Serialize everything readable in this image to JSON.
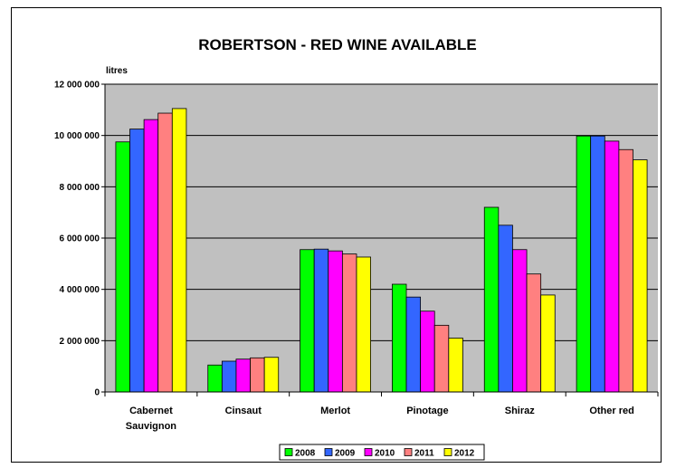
{
  "chart_data": {
    "type": "bar",
    "title": "ROBERTSON - RED WINE AVAILABLE",
    "ylabel": "litres",
    "xlabel": "",
    "ylim": [
      0,
      12000000
    ],
    "yticks": [
      0,
      2000000,
      4000000,
      6000000,
      8000000,
      10000000,
      12000000
    ],
    "ytick_labels": [
      "0",
      "2 000 000",
      "4 000 000",
      "6 000 000",
      "8 000 000",
      "10 000 000",
      "12 000 000"
    ],
    "categories": [
      [
        "Cabernet",
        "Sauvignon"
      ],
      [
        "Cinsaut"
      ],
      [
        "Merlot"
      ],
      [
        "Pinotage"
      ],
      [
        "Shiraz"
      ],
      [
        "Other red"
      ]
    ],
    "series": [
      {
        "name": "2008",
        "color": "#00ff00",
        "values": [
          9750000,
          1050000,
          5550000,
          4200000,
          7200000,
          9980000
        ]
      },
      {
        "name": "2009",
        "color": "#3366ff",
        "values": [
          10250000,
          1200000,
          5570000,
          3700000,
          6500000,
          9980000
        ]
      },
      {
        "name": "2010",
        "color": "#ff00ff",
        "values": [
          10620000,
          1280000,
          5500000,
          3150000,
          5550000,
          9780000
        ]
      },
      {
        "name": "2011",
        "color": "#ff8080",
        "values": [
          10870000,
          1330000,
          5380000,
          2600000,
          4600000,
          9450000
        ]
      },
      {
        "name": "2012",
        "color": "#ffff00",
        "values": [
          11050000,
          1350000,
          5260000,
          2100000,
          3780000,
          9050000
        ]
      }
    ],
    "plot_background": "#c0c0c0",
    "grid": true,
    "legend_position": "bottom"
  }
}
